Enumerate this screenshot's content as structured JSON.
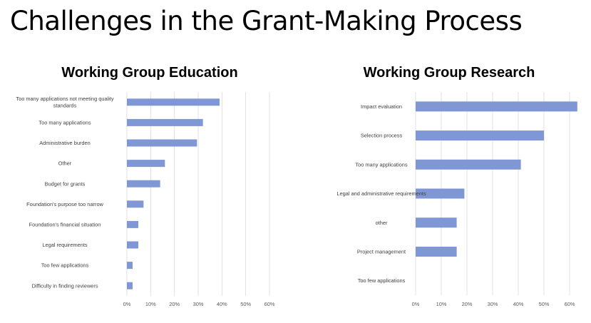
{
  "slide": {
    "title": "Challenges in the Grant-Making Process"
  },
  "chart_data": [
    {
      "type": "bar",
      "orientation": "horizontal",
      "title": "Working Group Education",
      "categories": [
        [
          "Too many applications not meeting quality",
          "standards"
        ],
        [
          "Too many applications"
        ],
        [
          "Administrative burden"
        ],
        [
          "Other"
        ],
        [
          "Budget for grants"
        ],
        [
          "Foundation's purpose too narrow"
        ],
        [
          "Foundation's financial situation"
        ],
        [
          "Legal requirements"
        ],
        [
          "Too few applications"
        ],
        [
          "Difficulty in finding reviewers"
        ]
      ],
      "values": [
        39,
        32,
        29.5,
        16,
        14,
        7,
        4.8,
        4.8,
        2.4,
        2.4
      ],
      "xlim": [
        0,
        60
      ],
      "ticks": [
        "0%",
        "10%",
        "20%",
        "30%",
        "40%",
        "50%",
        "60%"
      ],
      "grid": true,
      "color": "#7f97d4"
    },
    {
      "type": "bar",
      "orientation": "horizontal",
      "title": "Working Group Research",
      "categories": [
        [
          "Impact evaluation"
        ],
        [
          "Selection process"
        ],
        [
          "Too many applications"
        ],
        [
          "Legal and administrative requirements"
        ],
        [
          "other"
        ],
        [
          "Project management"
        ],
        [
          "Too few applications"
        ]
      ],
      "values": [
        63,
        50,
        41,
        19,
        16,
        16,
        0
      ],
      "xlim": [
        0,
        60
      ],
      "ticks": [
        "0%",
        "10%",
        "20%",
        "30%",
        "40%",
        "50%",
        "60%"
      ],
      "grid": true,
      "color": "#7f97d4"
    }
  ]
}
